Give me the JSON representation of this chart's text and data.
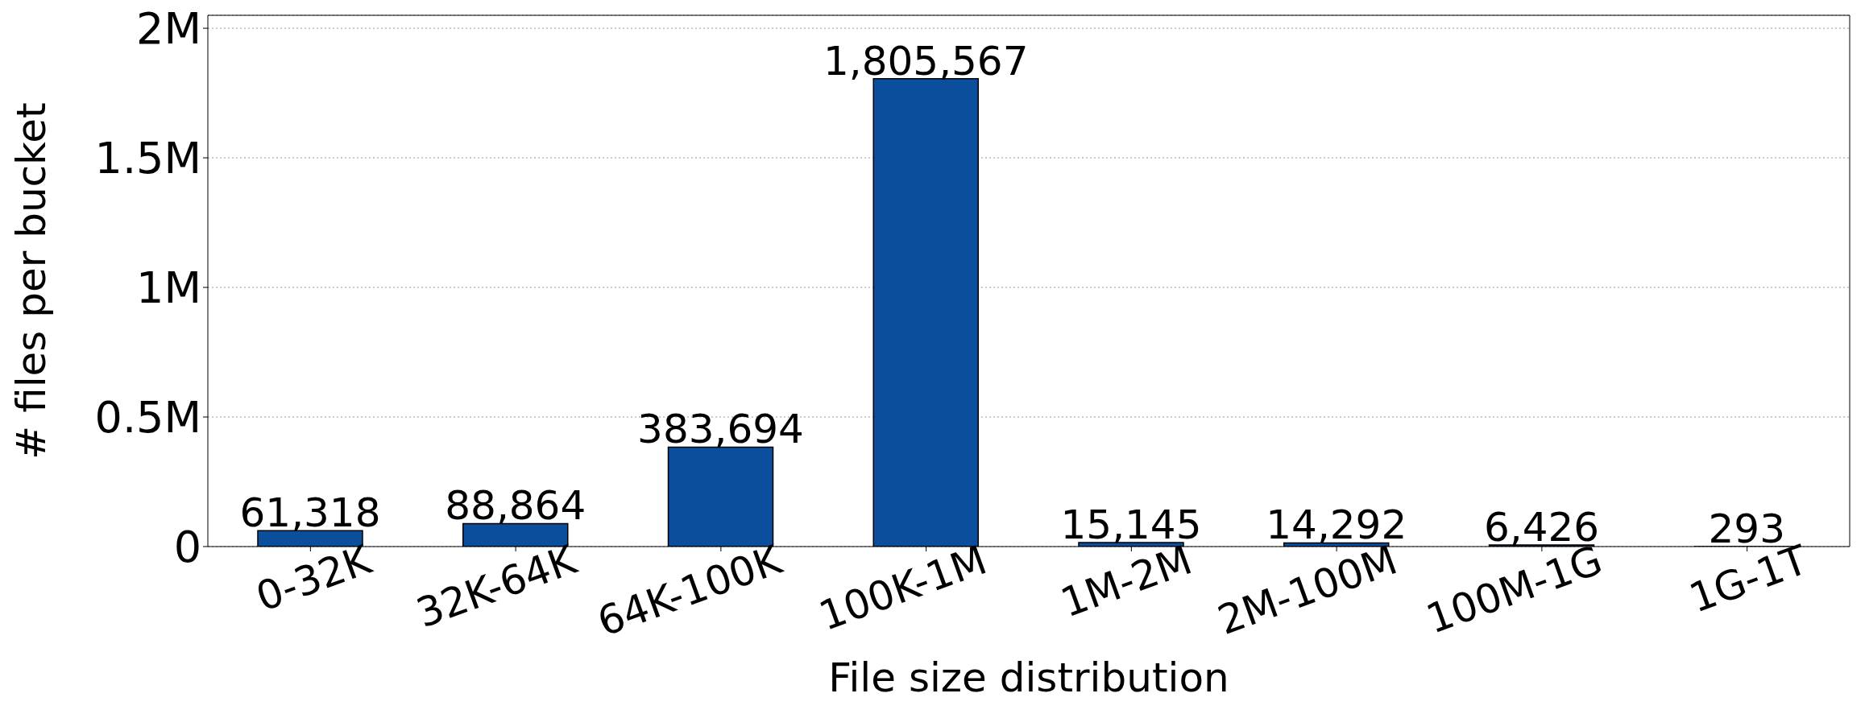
{
  "chart_data": {
    "type": "bar",
    "xlabel": "File size distribution",
    "ylabel": "# files per bucket",
    "categories": [
      "0-32K",
      "32K-64K",
      "64K-100K",
      "100K-1M",
      "1M-2M",
      "2M-100M",
      "100M-1G",
      "1G-1T"
    ],
    "values": [
      61318,
      88864,
      383694,
      1805567,
      15145,
      14292,
      6426,
      293
    ],
    "value_labels": [
      "61,318",
      "88,864",
      "383,694",
      "1,805,567",
      "15,145",
      "14,292",
      "6,426",
      "293"
    ],
    "color": "#0b4f9c",
    "grid": "y",
    "ylim": [
      0,
      2050000
    ],
    "yticks": [
      0,
      {
        "value": 500000,
        "label": "0.5M"
      },
      {
        "value": 1000000,
        "label": "1M"
      },
      {
        "value": 1500000,
        "label": "1.5M"
      },
      {
        "value": 2000000,
        "label": "2M"
      }
    ]
  }
}
